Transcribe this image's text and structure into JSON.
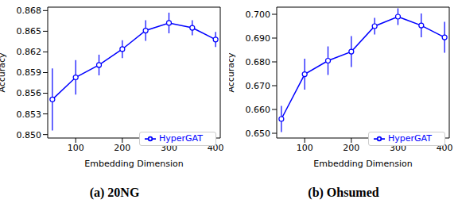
{
  "chart_data": [
    {
      "type": "line",
      "title": "(a) 20NG",
      "x_label": "Embedding Dimension",
      "y_label": "Accuracy",
      "x": [
        50,
        100,
        150,
        200,
        250,
        300,
        350,
        400
      ],
      "series": [
        {
          "name": "HyperGAT",
          "color": "#0000ff",
          "marker": "circle",
          "values": [
            0.8551,
            0.8583,
            0.8601,
            0.8624,
            0.8651,
            0.8662,
            0.8655,
            0.8638
          ],
          "error": [
            0.0045,
            0.0025,
            0.0015,
            0.0013,
            0.0015,
            0.0015,
            0.0011,
            0.0011
          ]
        }
      ],
      "xlim": [
        40,
        410
      ],
      "xticks": [
        100,
        200,
        300,
        400
      ],
      "ylim": [
        0.8495,
        0.8685
      ],
      "yticks": [
        {
          "value": 0.85,
          "label": "0.850"
        },
        {
          "value": 0.853,
          "label": "0.853"
        },
        {
          "value": 0.856,
          "label": "0.856"
        },
        {
          "value": 0.859,
          "label": "0.859"
        },
        {
          "value": 0.862,
          "label": "0.862"
        },
        {
          "value": 0.865,
          "label": "0.865"
        },
        {
          "value": 0.868,
          "label": "0.868"
        }
      ],
      "legend": "lower right",
      "grid": false
    },
    {
      "type": "line",
      "title": "(b) Ohsumed",
      "x_label": "Embedding Dimension",
      "y_label": "Accuracy",
      "x": [
        50,
        100,
        150,
        200,
        250,
        300,
        350,
        400
      ],
      "series": [
        {
          "name": "HyperGAT",
          "color": "#0000ff",
          "marker": "circle",
          "values": [
            0.656,
            0.6748,
            0.6805,
            0.6843,
            0.695,
            0.699,
            0.6953,
            0.6903
          ],
          "error": [
            0.0055,
            0.0065,
            0.006,
            0.0065,
            0.0035,
            0.0035,
            0.005,
            0.0065
          ]
        }
      ],
      "xlim": [
        40,
        410
      ],
      "xticks": [
        100,
        200,
        300,
        400
      ],
      "ylim": [
        0.648,
        0.703
      ],
      "yticks": [
        {
          "value": 0.65,
          "label": "0.650"
        },
        {
          "value": 0.66,
          "label": "0.660"
        },
        {
          "value": 0.67,
          "label": "0.670"
        },
        {
          "value": 0.68,
          "label": "0.680"
        },
        {
          "value": 0.69,
          "label": "0.690"
        },
        {
          "value": 0.7,
          "label": "0.700"
        }
      ],
      "legend": "lower right",
      "grid": false
    }
  ]
}
